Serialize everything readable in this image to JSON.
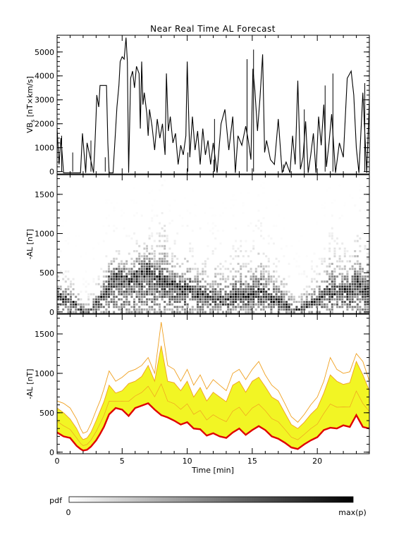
{
  "chart_data": {
    "title": "Near Real Time AL Forecast",
    "xlabel": "Time [min]",
    "xlim": [
      0,
      24
    ],
    "xticks": [
      0,
      5,
      10,
      15,
      20
    ],
    "panels": [
      {
        "name": "vbs",
        "type": "line",
        "ylabel": "VB",
        "ylabel_sub": "s",
        "ylabel_rest": " [nT×km/s]",
        "ylim": [
          -100,
          5700
        ],
        "yticks": [
          0,
          1000,
          2000,
          3000,
          4000,
          5000
        ],
        "color": "#000000",
        "x": [
          0,
          0.15,
          0.3,
          0.5,
          1.8,
          1.95,
          2.2,
          2.3,
          2.8,
          2.9,
          3.0,
          3.05,
          3.2,
          3.3,
          3.4,
          3.6,
          3.8,
          3.9,
          4.0,
          4.3,
          4.6,
          4.75,
          4.85,
          5.0,
          5.15,
          5.3,
          5.4,
          5.5,
          5.65,
          5.8,
          5.95,
          6.1,
          6.3,
          6.4,
          6.5,
          6.6,
          6.7,
          6.9,
          7.0,
          7.1,
          7.3,
          7.5,
          7.7,
          7.9,
          8.1,
          8.3,
          8.4,
          8.55,
          8.7,
          8.9,
          9.1,
          9.3,
          9.5,
          9.7,
          9.9,
          10.0,
          10.2,
          10.4,
          10.6,
          10.8,
          11.0,
          11.2,
          11.4,
          11.6,
          11.8,
          12.0,
          12.3,
          12.6,
          12.9,
          13.2,
          13.5,
          13.7,
          13.9,
          14.2,
          14.5,
          14.7,
          14.9,
          15.05,
          15.2,
          15.4,
          15.6,
          15.8,
          15.95,
          16.1,
          16.4,
          16.7,
          17.0,
          17.3,
          17.6,
          17.9,
          18.1,
          18.3,
          18.5,
          18.7,
          18.9,
          19.1,
          19.3,
          19.5,
          19.7,
          19.9,
          20.1,
          20.3,
          20.5,
          20.7,
          20.9,
          21.1,
          21.4,
          21.7,
          22.0,
          22.3,
          22.6,
          22.8,
          23.0,
          23.2,
          23.5,
          23.8,
          24.0
        ],
        "y": [
          1800,
          300,
          1400,
          -50,
          -50,
          1600,
          -50,
          1200,
          -50,
          1000,
          2400,
          3200,
          2700,
          3600,
          3600,
          3600,
          3600,
          1200,
          -50,
          -50,
          2700,
          3600,
          4600,
          4800,
          4700,
          5600,
          4600,
          -50,
          3900,
          4200,
          3500,
          4400,
          4100,
          1800,
          4600,
          2800,
          3300,
          2400,
          1500,
          2600,
          1900,
          900,
          2200,
          1400,
          2000,
          700,
          4100,
          1700,
          2300,
          1200,
          1600,
          300,
          1100,
          700,
          1500,
          4600,
          600,
          2300,
          900,
          1700,
          300,
          1800,
          700,
          1300,
          300,
          1200,
          -50,
          2000,
          2600,
          900,
          2300,
          -50,
          1500,
          1100,
          1900,
          1300,
          500,
          4300,
          3400,
          1700,
          3100,
          4900,
          800,
          1300,
          500,
          300,
          2200,
          -50,
          400,
          -50,
          1500,
          300,
          3800,
          100,
          600,
          2100,
          -50,
          700,
          1600,
          -50,
          2300,
          1100,
          2800,
          200,
          1200,
          2400,
          -50,
          1200,
          600,
          3900,
          4200,
          3200,
          1000,
          -50,
          3300,
          -50,
          3000
        ],
        "extra_x": [
          0.35,
          1.2,
          2.6,
          3.7,
          10.05,
          12.05,
          12.1,
          14.6,
          15.1,
          17.4,
          19.0,
          20.6,
          21.2,
          23.65
        ],
        "extra_y": [
          1500,
          800,
          1300,
          600,
          800,
          500,
          2200,
          4700,
          5100,
          300,
          2600,
          3600,
          4100,
          3700
        ]
      },
      {
        "name": "al-pdf",
        "type": "heatmap",
        "ylabel": "-AL [nT]",
        "ylim": [
          -20,
          1750
        ],
        "yticks": [
          0,
          500,
          1000,
          1500
        ],
        "pdf_scale": {
          "label": "pdf",
          "min_label": "0",
          "max_label": "max(p)"
        }
      },
      {
        "name": "al-forecast",
        "type": "area",
        "ylabel": "-AL [nT]",
        "ylim": [
          -20,
          1750
        ],
        "yticks": [
          0,
          500,
          1000,
          1500
        ],
        "colors": {
          "fill": "#f2f524",
          "envelope": "#f0a020",
          "median": "#e00000"
        },
        "x": [
          0,
          0.5,
          1.0,
          1.5,
          1.8,
          2.0,
          2.3,
          2.6,
          3.0,
          3.3,
          3.6,
          4.0,
          4.5,
          5.0,
          5.5,
          6.0,
          6.5,
          7.0,
          7.5,
          8.0,
          8.5,
          9.0,
          9.5,
          10.0,
          10.5,
          11.0,
          11.5,
          12.0,
          12.5,
          13.0,
          13.5,
          14.0,
          14.5,
          15.0,
          15.5,
          16.0,
          16.5,
          17.0,
          17.5,
          18.0,
          18.5,
          19.0,
          19.5,
          20.0,
          20.5,
          21.0,
          21.5,
          22.0,
          22.5,
          23.0,
          23.5,
          24.0
        ],
        "median": [
          250,
          200,
          180,
          80,
          40,
          20,
          30,
          70,
          150,
          230,
          320,
          480,
          560,
          540,
          460,
          560,
          590,
          620,
          540,
          470,
          440,
          400,
          350,
          380,
          300,
          290,
          210,
          240,
          200,
          180,
          250,
          300,
          220,
          280,
          330,
          280,
          200,
          170,
          120,
          60,
          40,
          100,
          150,
          190,
          280,
          310,
          300,
          340,
          320,
          470,
          320,
          300
        ],
        "upper": [
          560,
          500,
          420,
          300,
          200,
          160,
          180,
          250,
          400,
          520,
          640,
          850,
          750,
          780,
          870,
          900,
          960,
          1100,
          900,
          1350,
          900,
          880,
          780,
          900,
          700,
          820,
          650,
          760,
          700,
          640,
          850,
          900,
          760,
          900,
          950,
          830,
          700,
          650,
          500,
          350,
          300,
          380,
          480,
          560,
          750,
          980,
          900,
          860,
          880,
          1150,
          980,
          780
        ],
        "outer": [
          650,
          620,
          560,
          420,
          300,
          240,
          260,
          360,
          530,
          650,
          800,
          1030,
          900,
          950,
          1020,
          1050,
          1100,
          1200,
          1000,
          1650,
          1100,
          1050,
          900,
          1050,
          850,
          980,
          800,
          920,
          850,
          780,
          1000,
          1050,
          920,
          1050,
          1150,
          980,
          850,
          780,
          620,
          450,
          380,
          480,
          600,
          700,
          900,
          1200,
          1050,
          1000,
          1020,
          1250,
          1150,
          900
        ]
      }
    ]
  }
}
